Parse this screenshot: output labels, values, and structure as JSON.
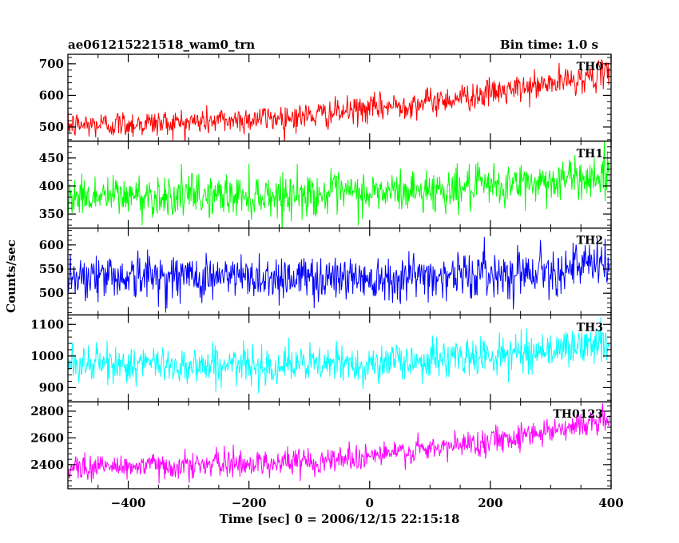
{
  "header": {
    "left_title": "ae061215221518_wam0_trn",
    "right_title": "Bin time: 1.0 s"
  },
  "chart_data": {
    "type": "line",
    "xlabel": "Time [sec] 0 = 2006/12/15 22:15:18",
    "ylabel": "Counts/sec",
    "xlim": [
      -500,
      400
    ],
    "x_ticks": [
      -400,
      -200,
      0,
      200,
      400
    ],
    "x_tick_labels": [
      "−400",
      "−200",
      "0",
      "200",
      "400"
    ],
    "bin_time_s": 1.0,
    "series": [
      {
        "name": "TH0",
        "color": "#ff0000",
        "ylim": [
          455,
          730
        ],
        "y_ticks": [
          500,
          600,
          700
        ],
        "trend": [
          [
            -500,
            505
          ],
          [
            -300,
            515
          ],
          [
            -100,
            535
          ],
          [
            100,
            580
          ],
          [
            250,
            620
          ],
          [
            400,
            670
          ]
        ],
        "noise_sigma": 22
      },
      {
        "name": "TH1",
        "color": "#00ff00",
        "ylim": [
          325,
          480
        ],
        "y_ticks": [
          350,
          400,
          450
        ],
        "trend": [
          [
            -500,
            382
          ],
          [
            -200,
            383
          ],
          [
            0,
            387
          ],
          [
            200,
            398
          ],
          [
            400,
            420
          ]
        ],
        "noise_sigma": 19
      },
      {
        "name": "TH2",
        "color": "#0000ff",
        "ylim": [
          455,
          635
        ],
        "y_ticks": [
          500,
          550,
          600
        ],
        "trend": [
          [
            -500,
            537
          ],
          [
            -200,
            533
          ],
          [
            0,
            533
          ],
          [
            200,
            540
          ],
          [
            400,
            560
          ]
        ],
        "noise_sigma": 24
      },
      {
        "name": "TH3",
        "color": "#00ffff",
        "ylim": [
          855,
          1130
        ],
        "y_ticks": [
          900,
          1000,
          1100
        ],
        "trend": [
          [
            -500,
            975
          ],
          [
            -200,
            970
          ],
          [
            0,
            975
          ],
          [
            200,
            1000
          ],
          [
            400,
            1040
          ]
        ],
        "noise_sigma": 30
      },
      {
        "name": "TH0123",
        "color": "#ff00ff",
        "ylim": [
          2220,
          2870
        ],
        "y_ticks": [
          2400,
          2600,
          2800
        ],
        "trend": [
          [
            -500,
            2380
          ],
          [
            -300,
            2395
          ],
          [
            -100,
            2425
          ],
          [
            100,
            2510
          ],
          [
            250,
            2620
          ],
          [
            400,
            2740
          ]
        ],
        "noise_sigma": 50
      }
    ]
  }
}
